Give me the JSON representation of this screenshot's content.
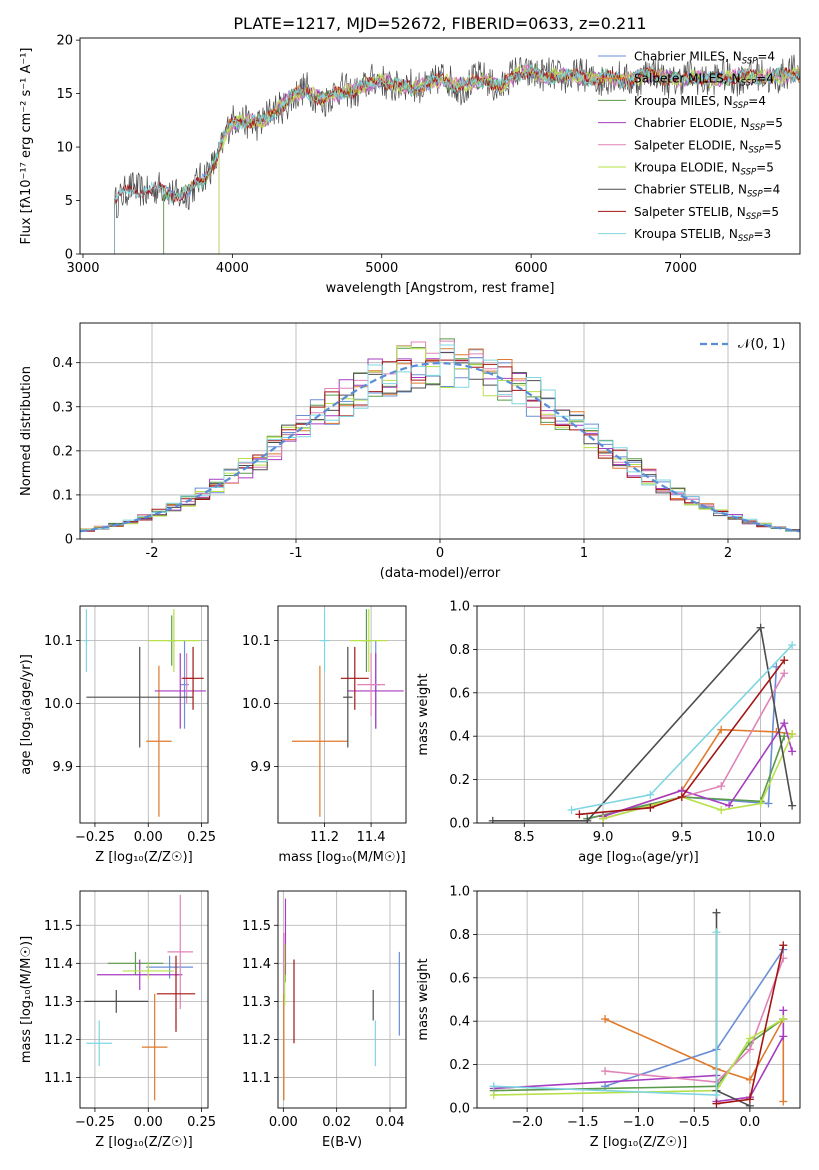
{
  "title": "PLATE=1217, MJD=52672, FIBERID=0633, z=0.211",
  "series_colors": [
    "#6a8fd6",
    "#e07a2c",
    "#5a9a4a",
    "#a63cc0",
    "#e084b8",
    "#b8e04a",
    "#4d4d4d",
    "#a31515",
    "#7fd6e0"
  ],
  "chart_data": [
    {
      "id": "spectrum",
      "type": "line",
      "xlabel": "wavelength [Angstrom, rest frame]",
      "ylabel": "Flux [fλ10⁻¹⁷ erg cm⁻² s⁻¹ A⁻¹]",
      "xlim": [
        2980,
        7800
      ],
      "ylim": [
        0,
        20.2
      ],
      "xticks": [
        3000,
        4000,
        5000,
        6000,
        7000
      ],
      "yticks": [
        0,
        5,
        10,
        15,
        20
      ],
      "grid": false,
      "legend_position": "right",
      "data_x": [
        3200,
        3300,
        3400,
        3500,
        3600,
        3700,
        3800,
        3900,
        3960,
        4000,
        4100,
        4200,
        4300,
        4400,
        4500,
        4600,
        4700,
        4800,
        4900,
        5000,
        5100,
        5200,
        5300,
        5400,
        5500,
        5600,
        5700,
        5800,
        5900,
        6000,
        6100,
        6200,
        6300,
        6400,
        6500,
        6600,
        6700,
        6800,
        6900,
        7000,
        7100,
        7200,
        7300,
        7400,
        7500,
        7600,
        7780
      ],
      "data_y": [
        5.0,
        5.8,
        6.0,
        6.2,
        5.5,
        5.8,
        6.8,
        9.2,
        11.5,
        12.2,
        12.5,
        12.3,
        13.5,
        14.8,
        15.2,
        14.5,
        15.0,
        15.3,
        15.8,
        16.2,
        15.8,
        15.5,
        15.9,
        16.3,
        15.8,
        16.0,
        16.3,
        15.6,
        16.8,
        17.2,
        16.4,
        16.8,
        16.6,
        16.3,
        16.6,
        16.2,
        16.5,
        16.8,
        16.5,
        16.2,
        16.6,
        16.3,
        16.4,
        16.7,
        16.5,
        16.6,
        16.8
      ],
      "series": [
        {
          "name": "Chabrier MILES, N",
          "sub": "SSP",
          "suffix": "=4",
          "start": 3540
        },
        {
          "name": "Salpeter MILES, N",
          "sub": "SSP",
          "suffix": "=4",
          "start": 3540
        },
        {
          "name": "Kroupa MILES, N",
          "sub": "SSP",
          "suffix": "=4",
          "start": 3540
        },
        {
          "name": "Chabrier ELODIE, N",
          "sub": "SSP",
          "suffix": "=5",
          "start": 3910
        },
        {
          "name": "Salpeter ELODIE, N",
          "sub": "SSP",
          "suffix": "=5",
          "start": 3910
        },
        {
          "name": "Kroupa ELODIE, N",
          "sub": "SSP",
          "suffix": "=5",
          "start": 3910
        },
        {
          "name": "Chabrier STELIB, N",
          "sub": "SSP",
          "suffix": "=4",
          "start": 3210
        },
        {
          "name": "Salpeter STELIB, N",
          "sub": "SSP",
          "suffix": "=5",
          "start": 3210
        },
        {
          "name": "Kroupa STELIB, N",
          "sub": "SSP",
          "suffix": "=3",
          "start": 3210
        }
      ]
    },
    {
      "id": "residual-histogram",
      "type": "bar",
      "xlabel": "(data-model)/error",
      "ylabel": "Normed distribution",
      "xlim": [
        -2.5,
        2.5
      ],
      "ylim": [
        0,
        0.49
      ],
      "xticks": [
        -2,
        -1,
        0,
        1,
        2
      ],
      "yticks": [
        0.0,
        0.1,
        0.2,
        0.3,
        0.4
      ],
      "grid": true,
      "legend_position": "top-right",
      "reference_curve": {
        "name": "N(0,1)",
        "label": "𝒩(0, 1)",
        "color": "#5b8dd6"
      },
      "bin_width": 0.1,
      "bins_from": -2.5
    },
    {
      "id": "age-vs-Z",
      "type": "scatter",
      "xlabel": "Z [log₁₀(Z/Z☉)]",
      "ylabel": "age  [log₁₀(age/yr)]",
      "xlim": [
        -0.32,
        0.28
      ],
      "ylim": [
        9.81,
        10.155
      ],
      "xticks": [
        -0.25,
        0.0,
        0.25
      ],
      "xtick_labels": [
        "−0.25",
        "0.00",
        "0.25"
      ],
      "yticks": [
        9.9,
        10.0,
        10.1
      ],
      "ytick_labels": [
        "9.9",
        "10.0",
        "10.1"
      ],
      "grid": true,
      "points": [
        {
          "x": 0.17,
          "y": 10.03,
          "xerr": 0.02,
          "yerr": 0.07
        },
        {
          "x": 0.05,
          "y": 9.94,
          "xerr": 0.06,
          "yerr": 0.12
        },
        {
          "x": 0.11,
          "y": 10.1,
          "xerr": 0.02,
          "yerr": 0.04
        },
        {
          "x": 0.15,
          "y": 10.02,
          "xerr": 0.12,
          "yerr": 0.06
        },
        {
          "x": 0.18,
          "y": 10.04,
          "xerr": 0.03,
          "yerr": 0.04
        },
        {
          "x": 0.12,
          "y": 10.1,
          "xerr": 0.12,
          "yerr": 0.05
        },
        {
          "x": -0.04,
          "y": 10.01,
          "xerr": 0.25,
          "yerr": 0.08
        },
        {
          "x": 0.21,
          "y": 10.04,
          "xerr": 0.05,
          "yerr": 0.05
        },
        {
          "x": -0.29,
          "y": 10.1,
          "xerr": 0.01,
          "yerr": 0.05
        }
      ]
    },
    {
      "id": "age-vs-mass",
      "type": "scatter",
      "xlabel": "mass [log₁₀(M/M☉)]",
      "ylabel": "",
      "xlim": [
        11.0,
        11.55
      ],
      "ylim": [
        9.81,
        10.155
      ],
      "xticks": [
        11.2,
        11.4
      ],
      "xtick_labels": [
        "11.2",
        "11.4"
      ],
      "yticks": [
        9.9,
        10.0,
        10.1
      ],
      "ytick_labels": [
        "9.9",
        "10.0",
        "10.1"
      ],
      "grid": true,
      "points": [
        {
          "x": 11.42,
          "y": 10.03,
          "xerr": 0.02,
          "yerr": 0.07
        },
        {
          "x": 11.18,
          "y": 9.94,
          "xerr": 0.12,
          "yerr": 0.12
        },
        {
          "x": 11.38,
          "y": 10.1,
          "xerr": 0.02,
          "yerr": 0.05
        },
        {
          "x": 11.42,
          "y": 10.02,
          "xerr": 0.12,
          "yerr": 0.06
        },
        {
          "x": 11.4,
          "y": 10.03,
          "xerr": 0.06,
          "yerr": 0.05
        },
        {
          "x": 11.39,
          "y": 10.1,
          "xerr": 0.08,
          "yerr": 0.05
        },
        {
          "x": 11.3,
          "y": 10.01,
          "xerr": 0.02,
          "yerr": 0.08
        },
        {
          "x": 11.33,
          "y": 10.04,
          "xerr": 0.06,
          "yerr": 0.05
        },
        {
          "x": 11.2,
          "y": 10.1,
          "xerr": 0.02,
          "yerr": 0.05
        }
      ]
    },
    {
      "id": "mass-weight-vs-age",
      "type": "line",
      "xlabel": "age  [log₁₀(age/yr)]",
      "ylabel": "mass weight",
      "xlim": [
        8.2,
        10.25
      ],
      "ylim": [
        0,
        1.0
      ],
      "xticks": [
        8.5,
        9.0,
        9.5,
        10.0
      ],
      "xtick_labels": [
        "8.5",
        "9.0",
        "9.5",
        "10.0"
      ],
      "yticks": [
        0.0,
        0.2,
        0.4,
        0.6,
        0.8,
        1.0
      ],
      "ytick_labels": [
        "0.0",
        "0.2",
        "0.4",
        "0.6",
        "0.8",
        "1.0"
      ],
      "grid": true,
      "series": [
        {
          "x": [
            8.9,
            9.5,
            10.05,
            10.1
          ],
          "y": [
            0.02,
            0.12,
            0.09,
            0.72
          ]
        },
        {
          "x": [
            9.0,
            9.5,
            9.75,
            10.1,
            10.2
          ],
          "y": [
            0.03,
            0.15,
            0.43,
            0.42,
            0.41
          ]
        },
        {
          "x": [
            8.9,
            9.5,
            10.0,
            10.15
          ],
          "y": [
            0.02,
            0.12,
            0.1,
            0.4
          ]
        },
        {
          "x": [
            9.0,
            9.5,
            9.8,
            10.15,
            10.2
          ],
          "y": [
            0.03,
            0.15,
            0.08,
            0.46,
            0.33
          ]
        },
        {
          "x": [
            9.0,
            9.5,
            9.75,
            10.15
          ],
          "y": [
            0.02,
            0.12,
            0.17,
            0.69
          ]
        },
        {
          "x": [
            9.0,
            9.5,
            9.75,
            10.0,
            10.2
          ],
          "y": [
            0.02,
            0.12,
            0.06,
            0.09,
            0.41
          ]
        },
        {
          "x": [
            8.3,
            8.9,
            10.0,
            10.2
          ],
          "y": [
            0.01,
            0.01,
            0.9,
            0.08
          ]
        },
        {
          "x": [
            8.85,
            9.3,
            9.5,
            10.15
          ],
          "y": [
            0.04,
            0.07,
            0.12,
            0.75
          ]
        },
        {
          "x": [
            8.8,
            9.3,
            10.2
          ],
          "y": [
            0.06,
            0.13,
            0.82
          ]
        }
      ]
    },
    {
      "id": "mass-vs-Z",
      "type": "scatter",
      "xlabel": "Z [log₁₀(Z/Z☉)]",
      "ylabel": "mass [log₁₀(M/M☉)]",
      "xlim": [
        -0.32,
        0.28
      ],
      "ylim": [
        11.02,
        11.59
      ],
      "xticks": [
        -0.25,
        0.0,
        0.25
      ],
      "xtick_labels": [
        "−0.25",
        "0.00",
        "0.25"
      ],
      "yticks": [
        11.1,
        11.2,
        11.3,
        11.4,
        11.5
      ],
      "ytick_labels": [
        "11.1",
        "11.2",
        "11.3",
        "11.4",
        "11.5"
      ],
      "grid": true,
      "points": [
        {
          "x": 0.1,
          "y": 11.39,
          "xerr": 0.11,
          "yerr": 0.03
        },
        {
          "x": 0.03,
          "y": 11.18,
          "xerr": 0.06,
          "yerr": 0.14
        },
        {
          "x": -0.06,
          "y": 11.4,
          "xerr": 0.13,
          "yerr": 0.03
        },
        {
          "x": -0.04,
          "y": 11.37,
          "xerr": 0.2,
          "yerr": 0.04
        },
        {
          "x": 0.15,
          "y": 11.43,
          "xerr": 0.06,
          "yerr": 0.15
        },
        {
          "x": 0.0,
          "y": 11.38,
          "xerr": 0.12,
          "yerr": 0.02
        },
        {
          "x": -0.15,
          "y": 11.3,
          "xerr": 0.15,
          "yerr": 0.03
        },
        {
          "x": 0.13,
          "y": 11.32,
          "xerr": 0.09,
          "yerr": 0.1
        },
        {
          "x": -0.23,
          "y": 11.19,
          "xerr": 0.06,
          "yerr": 0.06
        }
      ]
    },
    {
      "id": "mass-vs-ebv",
      "type": "scatter",
      "xlabel": "E(B-V)",
      "ylabel": "",
      "xlim": [
        -0.002,
        0.046
      ],
      "ylim": [
        11.02,
        11.59
      ],
      "xticks": [
        0.0,
        0.02,
        0.04
      ],
      "xtick_labels": [
        "0.00",
        "0.02",
        "0.04"
      ],
      "yticks": [
        11.1,
        11.2,
        11.3,
        11.4,
        11.5
      ],
      "ytick_labels": [
        "11.1",
        "11.2",
        "11.3",
        "11.4",
        "11.5"
      ],
      "grid": true,
      "points": [
        {
          "x": 0.0435,
          "y": 11.32,
          "xerr": 0,
          "yerr": 0.11
        },
        {
          "x": 0.0002,
          "y": 11.18,
          "xerr": 0,
          "yerr": 0.14
        },
        {
          "x": 0.0007,
          "y": 11.4,
          "xerr": 0,
          "yerr": 0.05
        },
        {
          "x": 0.0008,
          "y": 11.47,
          "xerr": 0,
          "yerr": 0.1
        },
        {
          "x": 0.0002,
          "y": 11.4,
          "xerr": 0,
          "yerr": 0.08
        },
        {
          "x": 0.0005,
          "y": 11.37,
          "xerr": 0,
          "yerr": 0.08
        },
        {
          "x": 0.0337,
          "y": 11.29,
          "xerr": 0,
          "yerr": 0.04
        },
        {
          "x": 0.004,
          "y": 11.3,
          "xerr": 0,
          "yerr": 0.11
        },
        {
          "x": 0.0345,
          "y": 11.19,
          "xerr": 0,
          "yerr": 0.06
        }
      ]
    },
    {
      "id": "mass-weight-vs-Z",
      "type": "line",
      "xlabel": "Z [log₁₀(Z/Z☉)]",
      "ylabel": "mass weight",
      "xlim": [
        -2.45,
        0.45
      ],
      "ylim": [
        0,
        1.0
      ],
      "xticks": [
        -2.0,
        -1.5,
        -1.0,
        -0.5,
        0.0
      ],
      "xtick_labels": [
        "−2.0",
        "−1.5",
        "−1.0",
        "−0.5",
        "0.0"
      ],
      "yticks": [
        0.0,
        0.2,
        0.4,
        0.6,
        0.8,
        1.0
      ],
      "ytick_labels": [
        "0.0",
        "0.2",
        "0.4",
        "0.6",
        "0.8",
        "1.0"
      ],
      "grid": true,
      "series": [
        {
          "x": [
            -1.3,
            -0.3,
            0.3
          ],
          "y": [
            0.1,
            0.27,
            0.73
          ]
        },
        {
          "x": [
            -1.3,
            -0.3,
            0.0,
            0.3,
            0.3
          ],
          "y": [
            0.41,
            0.18,
            0.13,
            0.41,
            0.03
          ]
        },
        {
          "x": [
            -2.3,
            -0.3,
            0.0,
            0.3
          ],
          "y": [
            0.08,
            0.1,
            0.3,
            0.41
          ]
        },
        {
          "x": [
            -2.3,
            -0.3,
            -0.3,
            0.0,
            0.3,
            0.3
          ],
          "y": [
            0.09,
            0.15,
            0.03,
            0.05,
            0.33,
            0.45
          ]
        },
        {
          "x": [
            -1.3,
            -0.3,
            0.0,
            0.3
          ],
          "y": [
            0.17,
            0.12,
            0.27,
            0.69
          ]
        },
        {
          "x": [
            -2.3,
            -0.3,
            0.0,
            0.3
          ],
          "y": [
            0.06,
            0.08,
            0.32,
            0.41
          ]
        },
        {
          "x": [
            -0.3,
            -0.3,
            0.0
          ],
          "y": [
            0.9,
            0.08,
            0.01
          ]
        },
        {
          "x": [
            -0.3,
            0.0,
            0.3
          ],
          "y": [
            0.02,
            0.04,
            0.75
          ]
        },
        {
          "x": [
            -2.3,
            -0.3,
            -0.3
          ],
          "y": [
            0.1,
            0.06,
            0.81
          ]
        }
      ]
    }
  ]
}
